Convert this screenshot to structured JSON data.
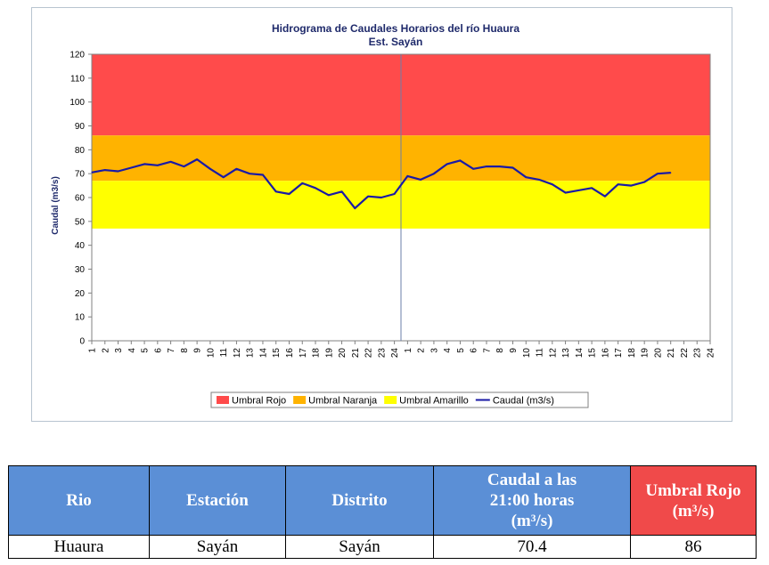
{
  "chart_data": {
    "type": "line",
    "title": "Hidrograma de Caudales Horarios del río Huaura",
    "subtitle": "Est. Sayán",
    "ylabel": "Caudal  (m3/s)",
    "xlabel": "",
    "ylim": [
      0,
      120
    ],
    "yticks": [
      "0",
      "10",
      "20",
      "30",
      "40",
      "50",
      "60",
      "70",
      "80",
      "90",
      "100",
      "110",
      "120"
    ],
    "x_tick_labels": [
      "1",
      "2",
      "3",
      "4",
      "5",
      "6",
      "7",
      "8",
      "9",
      "10",
      "11",
      "12",
      "13",
      "14",
      "15",
      "16",
      "17",
      "18",
      "19",
      "20",
      "21",
      "22",
      "23",
      "24",
      "1",
      "2",
      "3",
      "4",
      "5",
      "6",
      "7",
      "8",
      "9",
      "10",
      "11",
      "12",
      "13",
      "14",
      "15",
      "16",
      "17",
      "18",
      "19",
      "20",
      "21",
      "22",
      "23",
      "24"
    ],
    "bands": [
      {
        "name": "Umbral Rojo",
        "from": 86,
        "to": 120,
        "color": "#ff4b4b"
      },
      {
        "name": "Umbral Naranja",
        "from": 67,
        "to": 86,
        "color": "#ffb300"
      },
      {
        "name": "Umbral Amarillo",
        "from": 47,
        "to": 67,
        "color": "#ffff00"
      }
    ],
    "series": [
      {
        "name": "Caudal (m3/s)",
        "color": "#1a1aa6",
        "values": [
          70.5,
          71.5,
          71,
          72.5,
          74,
          73.5,
          75,
          73,
          76,
          72,
          68.5,
          72,
          70,
          69.5,
          62.5,
          61.5,
          66,
          64,
          61,
          62.5,
          55.5,
          60.5,
          60,
          61.5,
          69,
          67.5,
          70,
          74,
          75.5,
          72,
          73,
          73,
          72.5,
          68.5,
          67.5,
          65.5,
          62,
          63,
          64,
          60.5,
          65.5,
          65,
          66.5,
          70,
          70.4
        ]
      }
    ],
    "divider_after_index": 23,
    "grid": false,
    "legend_position": "bottom"
  },
  "table": {
    "headers": [
      "Rio",
      "Estación",
      "Distrito",
      "Caudal a las 21:00 horas (m³/s)",
      "Umbral Rojo (m³/s)"
    ],
    "header_lines": {
      "caudal": [
        "Caudal a las",
        "21:00 horas",
        "(m³/s)"
      ],
      "umbral": [
        "Umbral Rojo",
        "(m³/s)"
      ]
    },
    "row": [
      "Huaura",
      "Sayán",
      "Sayán",
      "70.4",
      "86"
    ],
    "colors": {
      "header_blue": "#5b8fd6",
      "header_red": "#f04a4a"
    }
  }
}
